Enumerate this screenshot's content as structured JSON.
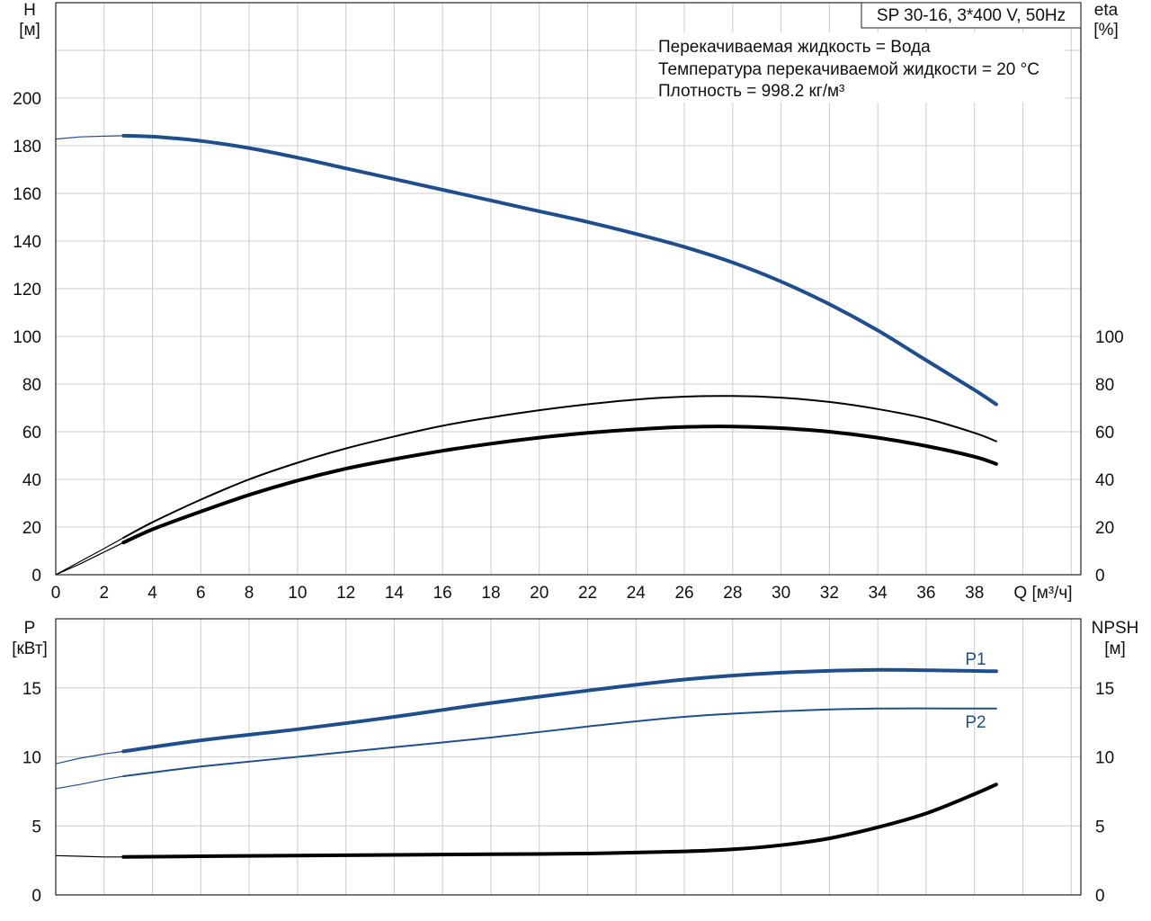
{
  "chart_data": [
    {
      "type": "line",
      "title": "SP 30-16, 3*400 V, 50Hz",
      "notes": [
        "Перекачиваемая жидкость = Вода",
        "Температура перекачиваемой жидкости = 20 °C",
        "Плотность = 998.2 кг/м³"
      ],
      "xlabel": "Q [м³/ч]",
      "ylabel_left": [
        "H",
        "[м]"
      ],
      "ylabel_right": [
        "eta",
        "[%]"
      ],
      "xlim": [
        0,
        42.4
      ],
      "ylim_left": [
        0,
        240
      ],
      "ylim_right": [
        0,
        240
      ],
      "xticks": [
        0,
        2,
        4,
        6,
        8,
        10,
        12,
        14,
        16,
        18,
        20,
        22,
        24,
        26,
        28,
        30,
        32,
        34,
        36,
        38
      ],
      "yticks_left": [
        0,
        20,
        40,
        60,
        80,
        100,
        120,
        140,
        160,
        180,
        200
      ],
      "yticks_right": [
        0,
        20,
        40,
        60,
        80,
        100
      ],
      "grid": true,
      "series": [
        {
          "axis": "left",
          "color": "#1f4e8c",
          "ext": [
            [
              0,
              182.8
            ],
            [
              1,
              183.7
            ],
            [
              2,
              184.0
            ],
            [
              2.8,
              184.2
            ]
          ],
          "points": [
            [
              2.8,
              184.2
            ],
            [
              4,
              183.8
            ],
            [
              6,
              182
            ],
            [
              8,
              179
            ],
            [
              10,
              175
            ],
            [
              12,
              170.5
            ],
            [
              14,
              166
            ],
            [
              16,
              161.5
            ],
            [
              18,
              157
            ],
            [
              20,
              152.5
            ],
            [
              22,
              148
            ],
            [
              24,
              143
            ],
            [
              26,
              137.5
            ],
            [
              28,
              131
            ],
            [
              30,
              123
            ],
            [
              32,
              113.5
            ],
            [
              34,
              102.5
            ],
            [
              36,
              90
            ],
            [
              38,
              77.5
            ],
            [
              38.9,
              71.5
            ]
          ]
        },
        {
          "axis": "right",
          "color": "#000000",
          "ext": [
            [
              0,
              0
            ],
            [
              1,
              5.5
            ],
            [
              2,
              11
            ],
            [
              2.8,
              15.5
            ]
          ],
          "points": [
            [
              2.8,
              15.5
            ],
            [
              4,
              22
            ],
            [
              6,
              31.5
            ],
            [
              8,
              40
            ],
            [
              10,
              47
            ],
            [
              12,
              53
            ],
            [
              14,
              58
            ],
            [
              16,
              62.5
            ],
            [
              18,
              66
            ],
            [
              20,
              69
            ],
            [
              22,
              71.5
            ],
            [
              24,
              73.5
            ],
            [
              26,
              74.7
            ],
            [
              28,
              75
            ],
            [
              30,
              74.3
            ],
            [
              32,
              72.5
            ],
            [
              34,
              69.5
            ],
            [
              36,
              65.5
            ],
            [
              38,
              59.5
            ],
            [
              38.9,
              56
            ]
          ]
        },
        {
          "axis": "right",
          "color": "#000000",
          "ext": [
            [
              0,
              0
            ],
            [
              1,
              4.5
            ],
            [
              2,
              9.5
            ],
            [
              2.8,
              13.5
            ]
          ],
          "points": [
            [
              2.8,
              13.5
            ],
            [
              4,
              19
            ],
            [
              6,
              26.5
            ],
            [
              8,
              33.5
            ],
            [
              10,
              39.5
            ],
            [
              12,
              44.5
            ],
            [
              14,
              48.5
            ],
            [
              16,
              52
            ],
            [
              18,
              55
            ],
            [
              20,
              57.5
            ],
            [
              22,
              59.5
            ],
            [
              24,
              61
            ],
            [
              26,
              62
            ],
            [
              28,
              62.2
            ],
            [
              30,
              61.5
            ],
            [
              32,
              60
            ],
            [
              34,
              57.5
            ],
            [
              36,
              54
            ],
            [
              38,
              49.5
            ],
            [
              38.9,
              46.5
            ]
          ]
        }
      ]
    },
    {
      "type": "line",
      "ylabel_left": [
        "P",
        "[кВт]"
      ],
      "ylabel_right": [
        "NPSH",
        "[м]"
      ],
      "xlim": [
        0,
        42.4
      ],
      "ylim_left": [
        0,
        20
      ],
      "ylim_right": [
        0,
        20
      ],
      "xticks": [
        0,
        2,
        4,
        6,
        8,
        10,
        12,
        14,
        16,
        18,
        20,
        22,
        24,
        26,
        28,
        30,
        32,
        34,
        36,
        38
      ],
      "yticks_left": [
        0,
        5,
        10,
        15
      ],
      "yticks_right": [
        0,
        5,
        10,
        15
      ],
      "grid": true,
      "series": [
        {
          "name": "P1",
          "axis": "left",
          "color": "#1f4e8c",
          "ext": [
            [
              0,
              9.5
            ],
            [
              1,
              9.9
            ],
            [
              2,
              10.2
            ],
            [
              2.8,
              10.4
            ]
          ],
          "points": [
            [
              2.8,
              10.4
            ],
            [
              6,
              11.2
            ],
            [
              10,
              12.0
            ],
            [
              14,
              12.9
            ],
            [
              18,
              13.9
            ],
            [
              22,
              14.8
            ],
            [
              26,
              15.6
            ],
            [
              30,
              16.1
            ],
            [
              34,
              16.3
            ],
            [
              38.9,
              16.2
            ]
          ]
        },
        {
          "name": "P2",
          "axis": "left",
          "color": "#1f4e8c",
          "ext": [
            [
              0,
              7.7
            ],
            [
              1,
              8.0
            ],
            [
              2,
              8.35
            ],
            [
              2.8,
              8.6
            ]
          ],
          "points": [
            [
              2.8,
              8.6
            ],
            [
              6,
              9.3
            ],
            [
              10,
              10.0
            ],
            [
              14,
              10.7
            ],
            [
              18,
              11.4
            ],
            [
              22,
              12.2
            ],
            [
              26,
              12.9
            ],
            [
              30,
              13.3
            ],
            [
              34,
              13.5
            ],
            [
              38.9,
              13.5
            ]
          ]
        },
        {
          "axis": "right",
          "color": "#000000",
          "ext": [
            [
              0,
              2.85
            ],
            [
              1,
              2.8
            ],
            [
              2,
              2.75
            ],
            [
              2.8,
              2.75
            ]
          ],
          "points": [
            [
              2.8,
              2.75
            ],
            [
              6,
              2.8
            ],
            [
              10,
              2.85
            ],
            [
              14,
              2.9
            ],
            [
              18,
              2.95
            ],
            [
              22,
              3.0
            ],
            [
              26,
              3.15
            ],
            [
              28,
              3.3
            ],
            [
              30,
              3.6
            ],
            [
              32,
              4.1
            ],
            [
              34,
              4.9
            ],
            [
              36,
              5.9
            ],
            [
              38,
              7.3
            ],
            [
              38.9,
              8.0
            ]
          ]
        }
      ]
    }
  ]
}
